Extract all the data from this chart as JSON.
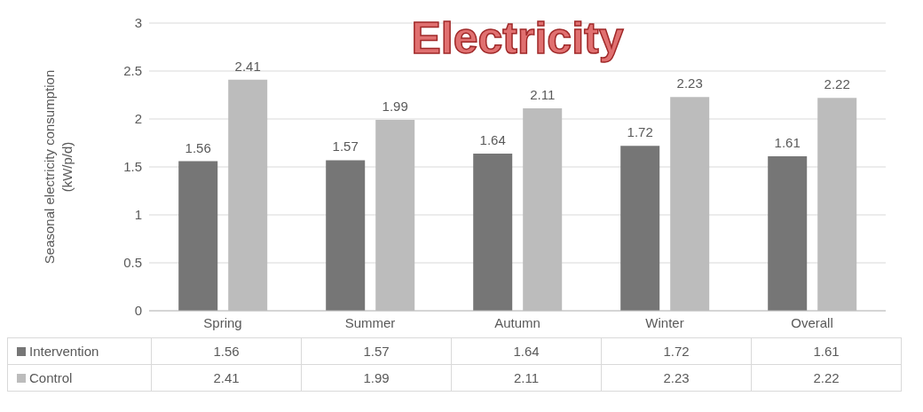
{
  "chart_data": {
    "type": "bar",
    "title": "Electricity",
    "ylabel": "Seasonal electricity consumption (kW/p/d)",
    "categories": [
      "Spring",
      "Summer",
      "Autumn",
      "Winter",
      "Overall"
    ],
    "series": [
      {
        "name": "Intervention",
        "color": "#767676",
        "values": [
          1.56,
          1.57,
          1.64,
          1.72,
          1.61
        ]
      },
      {
        "name": "Control",
        "color": "#bcbcbc",
        "values": [
          2.41,
          1.99,
          2.11,
          2.23,
          2.22
        ]
      }
    ],
    "annotations": [
      "1.56",
      "1.57",
      "1.64",
      "1.72",
      "1.61",
      "2.41",
      "1.99",
      "2.11",
      "2.23",
      "2.22"
    ],
    "ylim": [
      0,
      3
    ],
    "yticks": [
      0,
      0.5,
      1,
      1.5,
      2,
      2.5,
      3
    ],
    "grid": "y",
    "data_labels": true,
    "legend": "bottom left"
  }
}
